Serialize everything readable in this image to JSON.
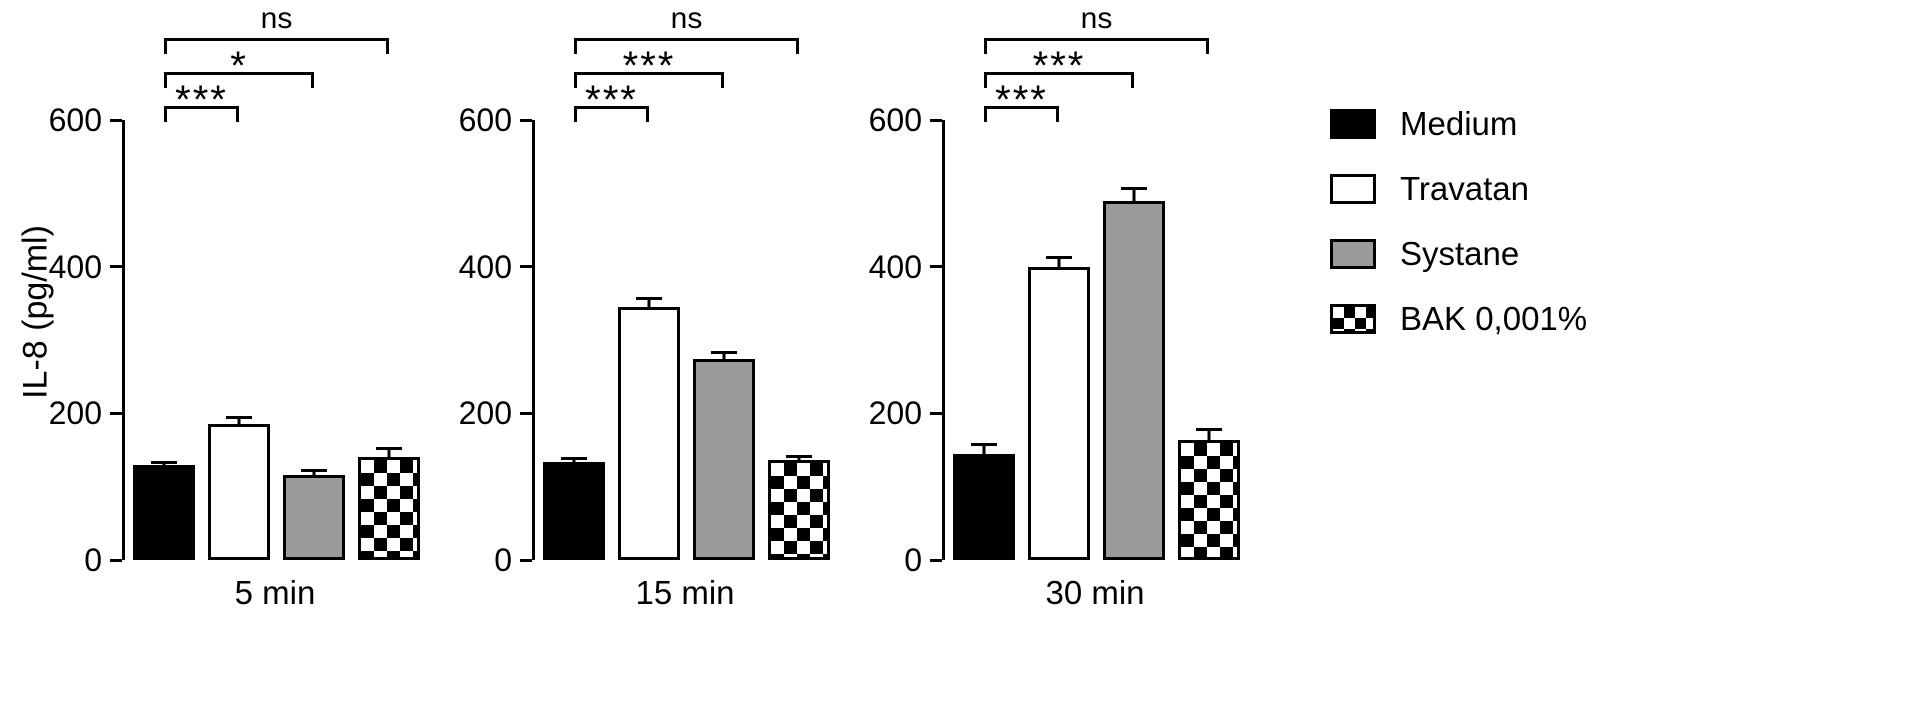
{
  "chart_data": {
    "type": "bar",
    "title": "",
    "ylabel": "IL-8 (pg/ml)",
    "xlabel": "",
    "ylim": [
      0,
      600
    ],
    "yticks": [
      0,
      200,
      400,
      600
    ],
    "grid": false,
    "legend_position": "right",
    "series": [
      "Medium",
      "Travatan",
      "Systane",
      "BAK 0,001%"
    ],
    "fills": [
      "black",
      "white",
      "gray",
      "checker"
    ],
    "panels": [
      {
        "xlabel": "5 min",
        "values": [
          130,
          186,
          116,
          140
        ],
        "errors": [
          5,
          10,
          8,
          14
        ],
        "significance": [
          {
            "from": 0,
            "to": 1,
            "label": "***"
          },
          {
            "from": 0,
            "to": 2,
            "label": "*"
          },
          {
            "from": 0,
            "to": 3,
            "label": "ns"
          }
        ]
      },
      {
        "xlabel": "15 min",
        "values": [
          133,
          345,
          274,
          136
        ],
        "errors": [
          8,
          13,
          11,
          7
        ],
        "significance": [
          {
            "from": 0,
            "to": 1,
            "label": "***"
          },
          {
            "from": 0,
            "to": 2,
            "label": "***"
          },
          {
            "from": 0,
            "to": 3,
            "label": "ns"
          }
        ]
      },
      {
        "xlabel": "30 min",
        "values": [
          144,
          400,
          490,
          164
        ],
        "errors": [
          16,
          15,
          18,
          16
        ],
        "significance": [
          {
            "from": 0,
            "to": 1,
            "label": "***"
          },
          {
            "from": 0,
            "to": 2,
            "label": "***"
          },
          {
            "from": 0,
            "to": 3,
            "label": "ns"
          }
        ]
      }
    ],
    "legend": [
      {
        "label": "Medium",
        "fill": "black"
      },
      {
        "label": "Travatan",
        "fill": "white"
      },
      {
        "label": "Systane",
        "fill": "gray"
      },
      {
        "label": "BAK 0,001%",
        "fill": "checker"
      }
    ],
    "colors": {
      "axis": "#000000",
      "bar_black": "#000000",
      "bar_white": "#ffffff",
      "bar_gray": "#9a9a9a",
      "background": "#ffffff"
    }
  }
}
